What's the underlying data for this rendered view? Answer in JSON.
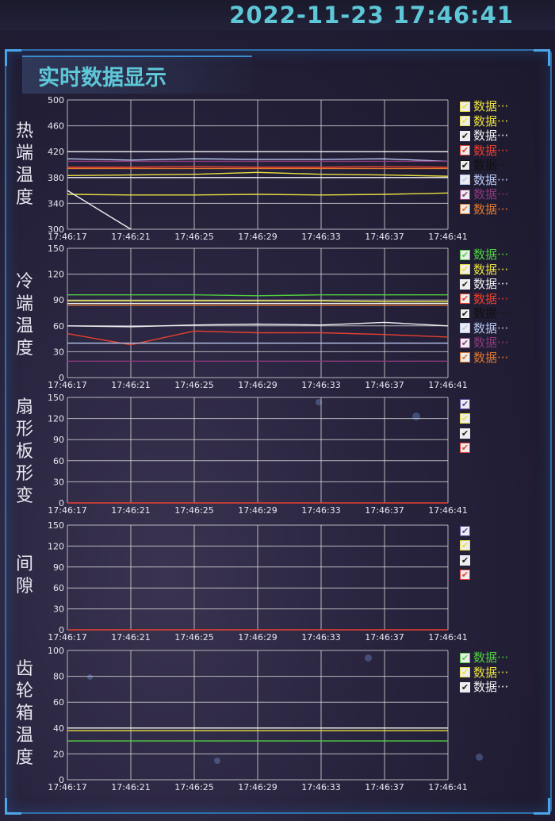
{
  "header": {
    "datetime": "2022-11-23   17:46:41"
  },
  "panel": {
    "title": "实时数据显示"
  },
  "x_ticks": [
    "17:46:17",
    "17:46:21",
    "17:46:25",
    "17:46:29",
    "17:46:33",
    "17:46:37",
    "17:46:41"
  ],
  "charts": [
    {
      "label": "热端温度",
      "legend": [
        {
          "text": "数据···",
          "color": "#e8e040"
        },
        {
          "text": "数据···",
          "color": "#e8e040"
        },
        {
          "text": "数据···",
          "color": "#f0f0f0"
        },
        {
          "text": "数据···",
          "color": "#e84030"
        },
        {
          "text": "数据···",
          "color": "#111111"
        },
        {
          "text": "数据···",
          "color": "#b8c8f0"
        },
        {
          "text": "数据···",
          "color": "#8a3a7a"
        },
        {
          "text": "数据···",
          "color": "#e07830"
        }
      ]
    },
    {
      "label": "冷端温度",
      "legend": [
        {
          "text": "数据···",
          "color": "#50d040"
        },
        {
          "text": "数据···",
          "color": "#e8e040"
        },
        {
          "text": "数据···",
          "color": "#f0f0f0"
        },
        {
          "text": "数据···",
          "color": "#e84030"
        },
        {
          "text": "数据···",
          "color": "#111111"
        },
        {
          "text": "数据···",
          "color": "#b8c8f0"
        },
        {
          "text": "数据···",
          "color": "#8a3a7a"
        },
        {
          "text": "数据···",
          "color": "#e07830"
        }
      ]
    },
    {
      "label": "扇形板形变",
      "legend": [
        {
          "text": "",
          "color": "#5a4aa0"
        },
        {
          "text": "",
          "color": "#e8e040"
        },
        {
          "text": "",
          "color": "#f0f0f0"
        },
        {
          "text": "",
          "color": "#e84030"
        }
      ]
    },
    {
      "label": "间隙",
      "legend": [
        {
          "text": "",
          "color": "#5a4aa0"
        },
        {
          "text": "",
          "color": "#e8e040"
        },
        {
          "text": "",
          "color": "#f0f0f0"
        },
        {
          "text": "",
          "color": "#e84030"
        }
      ]
    },
    {
      "label": "齿轮箱温度",
      "legend": [
        {
          "text": "数据···",
          "color": "#50d040"
        },
        {
          "text": "数据···",
          "color": "#e8e040"
        },
        {
          "text": "数据···",
          "color": "#f0f0f0"
        }
      ]
    }
  ],
  "chart_data": [
    {
      "type": "line",
      "ylim": [
        300,
        500
      ],
      "yticks": [
        "500",
        "460",
        "420",
        "380",
        "340",
        "300"
      ],
      "x": [
        "17:46:17",
        "17:46:21",
        "17:46:25",
        "17:46:29",
        "17:46:33",
        "17:46:37",
        "17:46:41"
      ],
      "series": [
        {
          "color": "#f0f0f0",
          "values": [
            420,
            420,
            420,
            420,
            420,
            420,
            420
          ]
        },
        {
          "color": "#b8c8f0",
          "values": [
            409,
            407,
            409,
            408,
            408,
            409,
            405
          ]
        },
        {
          "color": "#8a3a7a",
          "values": [
            405,
            405,
            405,
            405,
            405,
            405,
            405
          ]
        },
        {
          "color": "#e84030",
          "values": [
            396,
            396,
            397,
            396,
            396,
            397,
            396
          ]
        },
        {
          "color": "#e07830",
          "values": [
            394,
            394,
            394,
            394,
            394,
            394,
            394
          ]
        },
        {
          "color": "#e8e040",
          "values": [
            383,
            384,
            385,
            388,
            385,
            384,
            382
          ]
        },
        {
          "color": "#f0f0f0",
          "values": [
            380,
            380,
            380,
            380,
            380,
            380,
            380
          ]
        },
        {
          "color": "#e8e040",
          "values": [
            354,
            353,
            353,
            354,
            353,
            354,
            356
          ]
        },
        {
          "color": "#f0f0f0",
          "values": [
            360,
            300,
            null,
            null,
            null,
            null,
            null
          ]
        }
      ]
    },
    {
      "type": "line",
      "ylim": [
        0,
        150
      ],
      "yticks": [
        "150",
        "120",
        "90",
        "60",
        "30",
        "0"
      ],
      "x": [
        "17:46:17",
        "17:46:21",
        "17:46:25",
        "17:46:29",
        "17:46:33",
        "17:46:37",
        "17:46:41"
      ],
      "series": [
        {
          "color": "#50d040",
          "values": [
            96,
            96,
            96,
            95,
            96,
            96,
            96
          ]
        },
        {
          "color": "#e8e040",
          "values": [
            89,
            89,
            89,
            89,
            89,
            88,
            88
          ]
        },
        {
          "color": "#f0f0f0",
          "values": [
            86,
            86,
            86,
            86,
            86,
            86,
            86
          ]
        },
        {
          "color": "#e07830",
          "values": [
            84,
            84,
            84,
            84,
            84,
            84,
            84
          ]
        },
        {
          "color": "#f0f0f0",
          "values": [
            60,
            59,
            61,
            62,
            61,
            64,
            60
          ]
        },
        {
          "color": "#e84030",
          "values": [
            51,
            38,
            54,
            52,
            52,
            50,
            47
          ]
        },
        {
          "color": "#b8c8f0",
          "values": [
            40,
            40,
            40,
            40,
            40,
            40,
            40
          ]
        },
        {
          "color": "#8a3a7a",
          "values": [
            19,
            19,
            19,
            19,
            19,
            19,
            19
          ]
        }
      ]
    },
    {
      "type": "line",
      "ylim": [
        0,
        150
      ],
      "yticks": [
        "150",
        "120",
        "90",
        "60",
        "30",
        "0"
      ],
      "x": [
        "17:46:17",
        "17:46:21",
        "17:46:25",
        "17:46:29",
        "17:46:33",
        "17:46:37",
        "17:46:41"
      ],
      "series": [
        {
          "color": "#e84030",
          "values": [
            0,
            0,
            0,
            0,
            0,
            0,
            0
          ]
        }
      ]
    },
    {
      "type": "line",
      "ylim": [
        0,
        150
      ],
      "yticks": [
        "150",
        "120",
        "90",
        "60",
        "30",
        "0"
      ],
      "x": [
        "17:46:17",
        "17:46:21",
        "17:46:25",
        "17:46:29",
        "17:46:33",
        "17:46:37",
        "17:46:41"
      ],
      "series": [
        {
          "color": "#e84030",
          "values": [
            0,
            0,
            0,
            0,
            0,
            0,
            0
          ]
        }
      ]
    },
    {
      "type": "line",
      "ylim": [
        0,
        100
      ],
      "yticks": [
        "100",
        "80",
        "60",
        "40",
        "20",
        "0"
      ],
      "x": [
        "17:46:17",
        "17:46:21",
        "17:46:25",
        "17:46:29",
        "17:46:33",
        "17:46:37",
        "17:46:41"
      ],
      "series": [
        {
          "color": "#f0f0f0",
          "values": [
            40,
            40,
            40,
            40,
            40,
            40,
            40
          ]
        },
        {
          "color": "#e8e040",
          "values": [
            38,
            38,
            38,
            38,
            38,
            38,
            38
          ]
        },
        {
          "color": "#50d040",
          "values": [
            30,
            30,
            30,
            30,
            30,
            30,
            30
          ]
        }
      ]
    }
  ]
}
